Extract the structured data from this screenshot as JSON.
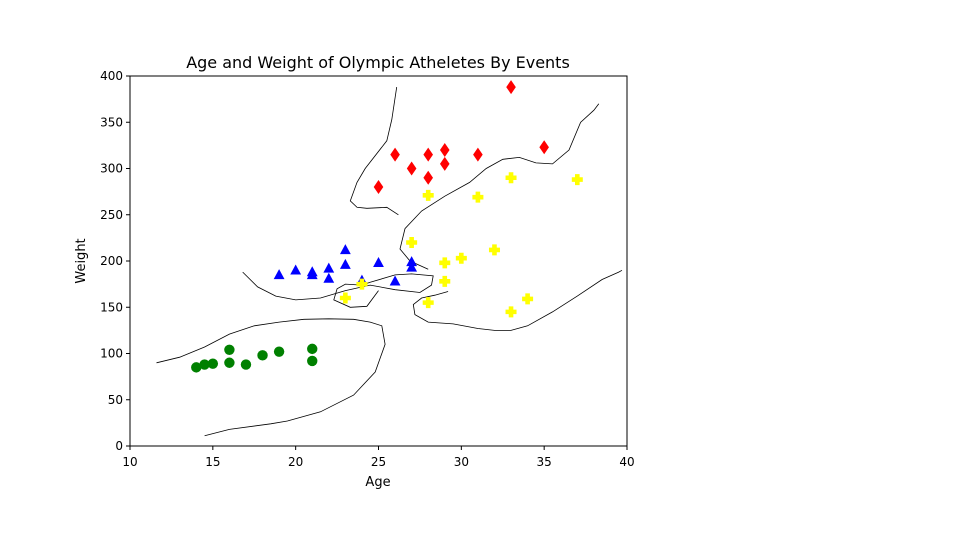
{
  "chart_data": {
    "type": "scatter",
    "title": "Age and Weight of Olympic Atheletes By Events",
    "xlabel": "Age",
    "ylabel": "Weight",
    "xlim": [
      10,
      40
    ],
    "ylim": [
      0,
      400
    ],
    "xticks": [
      10,
      15,
      20,
      25,
      30,
      35,
      40
    ],
    "yticks": [
      0,
      50,
      100,
      150,
      200,
      250,
      300,
      350,
      400
    ],
    "grid": false,
    "legend": "none",
    "series": [
      {
        "color": "#008000",
        "marker": "circle",
        "points": [
          [
            14,
            85
          ],
          [
            14.5,
            88
          ],
          [
            15,
            89
          ],
          [
            16,
            104
          ],
          [
            16,
            90
          ],
          [
            17,
            88
          ],
          [
            18,
            98
          ],
          [
            19,
            102
          ],
          [
            21,
            105
          ],
          [
            21,
            92
          ]
        ]
      },
      {
        "color": "#0000ff",
        "marker": "triangle",
        "points": [
          [
            19,
            185
          ],
          [
            20,
            190
          ],
          [
            21,
            188
          ],
          [
            21,
            185
          ],
          [
            22,
            192
          ],
          [
            22,
            181
          ],
          [
            23,
            212
          ],
          [
            23,
            196
          ],
          [
            24,
            179
          ],
          [
            25,
            198
          ],
          [
            26,
            178
          ],
          [
            27,
            199
          ],
          [
            27,
            193
          ]
        ]
      },
      {
        "color": "#ffff00",
        "marker": "plus",
        "points": [
          [
            23,
            160
          ],
          [
            24,
            175
          ],
          [
            27,
            220
          ],
          [
            28,
            271
          ],
          [
            28,
            155
          ],
          [
            29,
            198
          ],
          [
            29,
            178
          ],
          [
            30,
            203
          ],
          [
            31,
            269
          ],
          [
            32,
            212
          ],
          [
            33,
            290
          ],
          [
            33,
            145
          ],
          [
            34,
            159
          ],
          [
            37,
            288
          ]
        ]
      },
      {
        "color": "#ff0000",
        "marker": "diamond",
        "points": [
          [
            25,
            280
          ],
          [
            26,
            315
          ],
          [
            27,
            300
          ],
          [
            28,
            315
          ],
          [
            28,
            290
          ],
          [
            29,
            320
          ],
          [
            29,
            305
          ],
          [
            31,
            315
          ],
          [
            33,
            388
          ],
          [
            35,
            323
          ]
        ]
      }
    ],
    "boundary_color": "#000000",
    "boundaries": [
      [
        [
          11.6,
          90
        ],
        [
          13,
          96
        ],
        [
          14.5,
          107
        ],
        [
          16,
          121
        ],
        [
          17.5,
          130
        ],
        [
          19,
          134
        ],
        [
          20.5,
          137
        ],
        [
          22,
          137.5
        ],
        [
          23.5,
          137
        ],
        [
          24.5,
          134
        ],
        [
          25.2,
          130
        ],
        [
          25.4,
          110
        ],
        [
          24.8,
          80
        ],
        [
          23.5,
          55
        ],
        [
          21.5,
          37
        ],
        [
          19.5,
          27
        ],
        [
          18.5,
          24
        ],
        [
          16,
          18
        ],
        [
          14.5,
          11
        ]
      ],
      [
        [
          16.8,
          188
        ],
        [
          17.7,
          172
        ],
        [
          18.8,
          162
        ],
        [
          20,
          158
        ],
        [
          21.5,
          160
        ],
        [
          23,
          168
        ],
        [
          24.5,
          174
        ],
        [
          26,
          169
        ],
        [
          27.5,
          166
        ],
        [
          28.2,
          174
        ],
        [
          28.3,
          184
        ],
        [
          27,
          186
        ],
        [
          26,
          185
        ],
        [
          24.5,
          177
        ],
        [
          24,
          174
        ],
        [
          23,
          175
        ],
        [
          22.5,
          170
        ],
        [
          22.3,
          158
        ],
        [
          23.3,
          150
        ],
        [
          24.3,
          151
        ],
        [
          25,
          168
        ]
      ],
      [
        [
          26.2,
          250
        ],
        [
          25.5,
          258
        ],
        [
          24.3,
          257
        ],
        [
          23.7,
          258
        ],
        [
          23.3,
          265
        ],
        [
          23.7,
          285
        ],
        [
          24.2,
          300
        ],
        [
          25.5,
          330
        ],
        [
          25.8,
          353
        ],
        [
          26.1,
          388
        ]
      ],
      [
        [
          28,
          191
        ],
        [
          26.9,
          200
        ],
        [
          26.3,
          213
        ],
        [
          26.6,
          235
        ],
        [
          27.6,
          254
        ],
        [
          29,
          270
        ],
        [
          30.5,
          285
        ],
        [
          31.5,
          300
        ],
        [
          32.5,
          310
        ],
        [
          33.5,
          312
        ],
        [
          34.5,
          306
        ],
        [
          35.5,
          305
        ],
        [
          36.5,
          320
        ],
        [
          37.2,
          350
        ],
        [
          38,
          363
        ],
        [
          38.3,
          370
        ]
      ],
      [
        [
          29.2,
          167
        ],
        [
          28.4,
          163
        ],
        [
          27.6,
          160
        ],
        [
          27.1,
          153
        ],
        [
          27.2,
          142
        ],
        [
          28,
          134
        ],
        [
          29.5,
          132
        ],
        [
          31,
          127
        ],
        [
          32,
          125
        ],
        [
          33,
          125
        ],
        [
          34,
          130
        ],
        [
          35.5,
          145
        ],
        [
          37,
          162
        ],
        [
          38.5,
          180
        ],
        [
          39.5,
          188
        ],
        [
          39.7,
          190
        ]
      ]
    ]
  }
}
